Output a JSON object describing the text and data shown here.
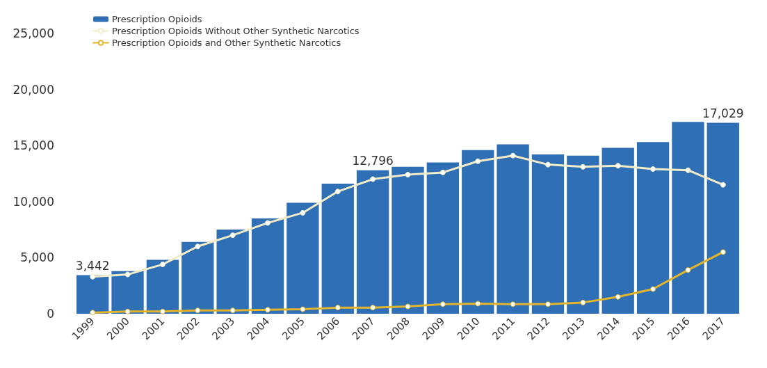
{
  "chart_data": {
    "type": "bar",
    "categories": [
      "1999",
      "2000",
      "2001",
      "2002",
      "2003",
      "2004",
      "2005",
      "2006",
      "2007",
      "2008",
      "2009",
      "2010",
      "2011",
      "2012",
      "2013",
      "2014",
      "2015",
      "2016",
      "2017"
    ],
    "series": [
      {
        "name": "Prescription Opioids",
        "color": "#2f6fb5",
        "values": [
          3442,
          3800,
          4800,
          6400,
          7500,
          8500,
          9900,
          11600,
          12796,
          13100,
          13500,
          14600,
          15100,
          14200,
          14100,
          14800,
          15300,
          17100,
          17029
        ],
        "value_labels": [
          "3,442",
          null,
          null,
          null,
          null,
          null,
          null,
          null,
          "12,796",
          null,
          null,
          null,
          null,
          null,
          null,
          null,
          null,
          null,
          "17,029"
        ]
      },
      {
        "name": "Prescription Opioids Without Other Synthetic Narcotics",
        "type": "line",
        "color": "#f2edc8",
        "values": [
          3300,
          3500,
          4400,
          6000,
          7000,
          8100,
          9000,
          10900,
          12000,
          12400,
          12600,
          13600,
          14100,
          13300,
          13100,
          13200,
          12900,
          12800,
          11500
        ]
      },
      {
        "name": "Prescription Opioids and Other Synthetic Narcotics",
        "type": "line",
        "color": "#e2b52c",
        "values": [
          100,
          200,
          200,
          300,
          300,
          350,
          400,
          550,
          550,
          650,
          850,
          900,
          850,
          850,
          1000,
          1500,
          2200,
          3900,
          5500
        ]
      }
    ],
    "ylim": [
      0,
      25000
    ],
    "yticks": [
      0,
      {
        "value": 5000,
        "label": "5,000"
      },
      {
        "value": 10000,
        "label": "10,000"
      },
      {
        "value": 15000,
        "label": "15,000"
      },
      {
        "value": 20000,
        "label": "20,000"
      },
      {
        "value": 25000,
        "label": "25,000"
      }
    ],
    "grid": false,
    "legend": "top left",
    "marker": "circle"
  }
}
